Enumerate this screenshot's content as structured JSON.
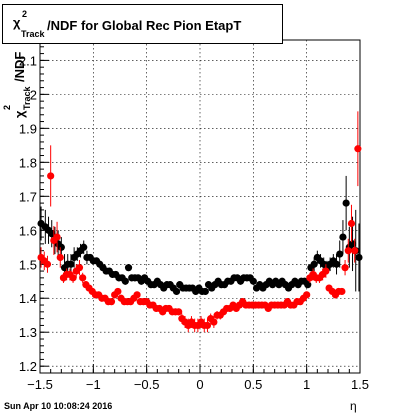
{
  "chart_data": {
    "type": "scatter",
    "title": "/NDF for Global Rec Pion EtapT",
    "title_prefix": {
      "symbol": "χ",
      "superscript": "2",
      "subscript": "Track"
    },
    "ylabel": "/NDF",
    "ylabel_prefix": {
      "symbol": "χ",
      "superscript": "2",
      "subscript": "Track"
    },
    "xlabel": "η",
    "xlim": [
      -1.5,
      1.5
    ],
    "ylim": [
      1.18,
      2.16
    ],
    "x_ticks": [
      -1.5,
      -1,
      -0.5,
      0,
      0.5,
      1,
      1.5
    ],
    "x_tick_labels": [
      "−1.5",
      "−1",
      "−0.5",
      "0",
      "0.5",
      "1",
      "1.5"
    ],
    "y_ticks": [
      1.2,
      1.3,
      1.4,
      1.5,
      1.6,
      1.7,
      1.8,
      1.9,
      2,
      2.1
    ],
    "y_tick_labels": [
      "1.2",
      "1.3",
      "1.4",
      "1.5",
      "1.6",
      "1.7",
      "1.8",
      "1.9",
      "2",
      "2.1"
    ],
    "grid": true,
    "legend": "none",
    "timestamp": "Sun Apr 10 10:08:24 2016",
    "series": [
      {
        "color": "#000000",
        "x": [
          -1.49,
          -1.45,
          -1.42,
          -1.39,
          -1.36,
          -1.33,
          -1.3,
          -1.27,
          -1.24,
          -1.21,
          -1.18,
          -1.15,
          -1.12,
          -1.09,
          -1.06,
          -1.03,
          -1,
          -0.97,
          -0.94,
          -0.91,
          -0.88,
          -0.85,
          -0.82,
          -0.79,
          -0.76,
          -0.73,
          -0.7,
          -0.67,
          -0.64,
          -0.61,
          -0.58,
          -0.55,
          -0.52,
          -0.49,
          -0.46,
          -0.43,
          -0.4,
          -0.37,
          -0.34,
          -0.31,
          -0.28,
          -0.25,
          -0.22,
          -0.19,
          -0.16,
          -0.13,
          -0.1,
          -0.07,
          -0.04,
          -0.01,
          0.02,
          0.05,
          0.08,
          0.11,
          0.14,
          0.17,
          0.2,
          0.23,
          0.26,
          0.29,
          0.32,
          0.35,
          0.38,
          0.41,
          0.44,
          0.47,
          0.5,
          0.53,
          0.56,
          0.59,
          0.62,
          0.65,
          0.68,
          0.71,
          0.74,
          0.77,
          0.8,
          0.83,
          0.86,
          0.89,
          0.92,
          0.95,
          0.98,
          1.01,
          1.04,
          1.07,
          1.1,
          1.13,
          1.16,
          1.19,
          1.22,
          1.25,
          1.28,
          1.31,
          1.34,
          1.37,
          1.4,
          1.43,
          1.46,
          1.49
        ],
        "y": [
          1.62,
          1.61,
          1.6,
          1.59,
          1.57,
          1.56,
          1.55,
          1.49,
          1.5,
          1.5,
          1.52,
          1.53,
          1.54,
          1.55,
          1.52,
          1.52,
          1.51,
          1.51,
          1.5,
          1.49,
          1.48,
          1.48,
          1.47,
          1.47,
          1.46,
          1.46,
          1.45,
          1.49,
          1.46,
          1.46,
          1.46,
          1.45,
          1.46,
          1.45,
          1.44,
          1.44,
          1.45,
          1.44,
          1.43,
          1.44,
          1.44,
          1.43,
          1.42,
          1.44,
          1.43,
          1.43,
          1.43,
          1.43,
          1.42,
          1.43,
          1.42,
          1.42,
          1.44,
          1.43,
          1.44,
          1.45,
          1.44,
          1.44,
          1.45,
          1.45,
          1.46,
          1.46,
          1.45,
          1.46,
          1.46,
          1.46,
          1.45,
          1.43,
          1.44,
          1.43,
          1.44,
          1.45,
          1.44,
          1.45,
          1.44,
          1.45,
          1.44,
          1.43,
          1.44,
          1.45,
          1.44,
          1.45,
          1.45,
          1.44,
          1.49,
          1.5,
          1.52,
          1.51,
          1.5,
          1.49,
          1.5,
          1.51,
          1.5,
          1.53,
          1.58,
          1.68,
          1.55,
          1.56,
          1.54,
          1.52
        ],
        "yerr": [
          0.05,
          0.05,
          0.04,
          0.04,
          0.04,
          0.04,
          0.03,
          0.04,
          0.03,
          0.03,
          0.03,
          0.02,
          0.02,
          0.02,
          0.02,
          0.01,
          0.01,
          0.01,
          0.01,
          0.01,
          0.01,
          0.01,
          0.01,
          0.01,
          0.01,
          0.01,
          0.01,
          0.01,
          0.01,
          0.01,
          0.01,
          0.01,
          0.01,
          0.01,
          0.01,
          0.01,
          0.01,
          0.01,
          0.01,
          0.01,
          0.01,
          0.01,
          0.01,
          0.01,
          0.01,
          0.01,
          0.01,
          0.01,
          0.01,
          0.01,
          0.01,
          0.01,
          0.01,
          0.01,
          0.01,
          0.01,
          0.01,
          0.01,
          0.01,
          0.01,
          0.01,
          0.01,
          0.01,
          0.01,
          0.01,
          0.01,
          0.01,
          0.01,
          0.01,
          0.01,
          0.01,
          0.01,
          0.01,
          0.01,
          0.01,
          0.01,
          0.01,
          0.01,
          0.01,
          0.01,
          0.01,
          0.01,
          0.01,
          0.01,
          0.01,
          0.02,
          0.02,
          0.02,
          0.02,
          0.02,
          0.02,
          0.02,
          0.03,
          0.04,
          0.05,
          0.08,
          0.06,
          0.08,
          0.12,
          0.1
        ]
      },
      {
        "color": "#ff0000",
        "x": [
          -1.49,
          -1.46,
          -1.43,
          -1.4,
          -1.37,
          -1.34,
          -1.31,
          -1.28,
          -1.25,
          -1.22,
          -1.19,
          -1.16,
          -1.13,
          -1.1,
          -1.07,
          -1.04,
          -1.01,
          -0.98,
          -0.95,
          -0.92,
          -0.89,
          -0.86,
          -0.83,
          -0.8,
          -0.77,
          -0.74,
          -0.71,
          -0.68,
          -0.65,
          -0.62,
          -0.59,
          -0.56,
          -0.53,
          -0.5,
          -0.47,
          -0.44,
          -0.41,
          -0.38,
          -0.35,
          -0.32,
          -0.29,
          -0.26,
          -0.23,
          -0.2,
          -0.17,
          -0.14,
          -0.11,
          -0.08,
          -0.05,
          -0.02,
          0.01,
          0.04,
          0.07,
          0.1,
          0.13,
          0.16,
          0.19,
          0.22,
          0.25,
          0.28,
          0.31,
          0.34,
          0.37,
          0.4,
          0.43,
          0.46,
          0.49,
          0.52,
          0.55,
          0.58,
          0.61,
          0.64,
          0.67,
          0.7,
          0.73,
          0.76,
          0.79,
          0.82,
          0.85,
          0.88,
          0.91,
          0.94,
          0.97,
          1,
          1.03,
          1.06,
          1.09,
          1.12,
          1.15,
          1.18,
          1.21,
          1.24,
          1.27,
          1.3,
          1.33,
          1.36,
          1.39,
          1.42,
          1.45,
          1.48
        ],
        "y": [
          1.52,
          1.51,
          1.5,
          1.76,
          1.57,
          1.58,
          1.52,
          1.46,
          1.47,
          1.47,
          1.46,
          1.48,
          1.49,
          1.46,
          1.44,
          1.43,
          1.42,
          1.41,
          1.41,
          1.4,
          1.4,
          1.39,
          1.39,
          1.41,
          1.42,
          1.4,
          1.39,
          1.39,
          1.39,
          1.4,
          1.41,
          1.39,
          1.39,
          1.39,
          1.38,
          1.38,
          1.37,
          1.37,
          1.36,
          1.37,
          1.37,
          1.36,
          1.36,
          1.36,
          1.34,
          1.33,
          1.32,
          1.33,
          1.32,
          1.32,
          1.33,
          1.32,
          1.32,
          1.34,
          1.33,
          1.35,
          1.35,
          1.36,
          1.37,
          1.37,
          1.38,
          1.37,
          1.38,
          1.39,
          1.38,
          1.38,
          1.38,
          1.38,
          1.38,
          1.38,
          1.38,
          1.37,
          1.38,
          1.38,
          1.38,
          1.38,
          1.38,
          1.39,
          1.38,
          1.38,
          1.39,
          1.39,
          1.4,
          1.41,
          1.46,
          1.47,
          1.46,
          1.46,
          1.47,
          1.48,
          1.43,
          1.42,
          1.41,
          1.42,
          1.42,
          1.49,
          1.54,
          1.62,
          1.54,
          1.84
        ]
      }
    ]
  }
}
